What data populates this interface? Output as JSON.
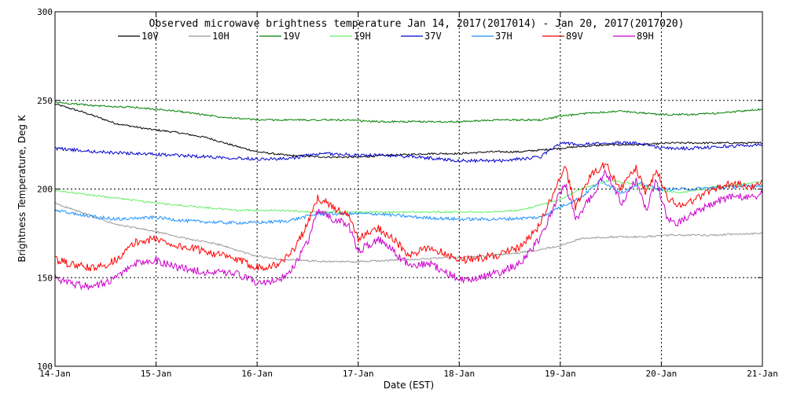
{
  "chart_data": {
    "type": "line",
    "title": "Observed microwave brightness temperature Jan 14, 2017(2017014) - Jan 20, 2017(2017020)",
    "xlabel": "Date (EST)",
    "ylabel": "Brightness Temperature, Deg K",
    "xlim": [
      0,
      7
    ],
    "ylim": [
      100,
      300
    ],
    "x_tick_values": [
      0,
      1,
      2,
      3,
      4,
      5,
      6,
      7
    ],
    "x_tick_labels": [
      "14-Jan",
      "15-Jan",
      "16-Jan",
      "17-Jan",
      "18-Jan",
      "19-Jan",
      "20-Jan",
      "21-Jan"
    ],
    "y_ticks": [
      100,
      150,
      200,
      250,
      300
    ],
    "grid": "dotted",
    "legend_position": "top",
    "series": [
      {
        "name": "10V",
        "color": "#000000",
        "points": [
          [
            0,
            248
          ],
          [
            0.3,
            243
          ],
          [
            0.6,
            237
          ],
          [
            0.9,
            234
          ],
          [
            1.2,
            232
          ],
          [
            1.5,
            229
          ],
          [
            1.8,
            224
          ],
          [
            2.0,
            221
          ],
          [
            2.3,
            219
          ],
          [
            2.7,
            218
          ],
          [
            3.0,
            218
          ],
          [
            3.3,
            219
          ],
          [
            3.7,
            220
          ],
          [
            4.0,
            220
          ],
          [
            4.3,
            221
          ],
          [
            4.6,
            221
          ],
          [
            5.0,
            223
          ],
          [
            5.2,
            224
          ],
          [
            5.5,
            225
          ],
          [
            5.8,
            225
          ],
          [
            6.1,
            226
          ],
          [
            6.5,
            226
          ],
          [
            7.0,
            226
          ]
        ]
      },
      {
        "name": "10H",
        "color": "#999999",
        "points": [
          [
            0,
            192
          ],
          [
            0.3,
            186
          ],
          [
            0.6,
            180
          ],
          [
            1.0,
            176
          ],
          [
            1.3,
            172
          ],
          [
            1.6,
            169
          ],
          [
            2.0,
            162
          ],
          [
            2.3,
            160
          ],
          [
            2.7,
            159
          ],
          [
            3.0,
            159
          ],
          [
            3.4,
            160
          ],
          [
            3.8,
            161
          ],
          [
            4.2,
            162
          ],
          [
            4.6,
            164
          ],
          [
            5.0,
            168
          ],
          [
            5.2,
            172
          ],
          [
            5.5,
            173
          ],
          [
            5.8,
            173
          ],
          [
            6.1,
            174
          ],
          [
            6.5,
            174
          ],
          [
            7.0,
            175
          ]
        ]
      },
      {
        "name": "19V",
        "color": "#008000",
        "points": [
          [
            0,
            249
          ],
          [
            0.4,
            247
          ],
          [
            0.8,
            246
          ],
          [
            1.2,
            244
          ],
          [
            1.6,
            241
          ],
          [
            2.0,
            239
          ],
          [
            2.4,
            239
          ],
          [
            2.8,
            239
          ],
          [
            3.2,
            238
          ],
          [
            3.6,
            238
          ],
          [
            4.0,
            238
          ],
          [
            4.4,
            239
          ],
          [
            4.8,
            239
          ],
          [
            5.0,
            241
          ],
          [
            5.3,
            243
          ],
          [
            5.6,
            244
          ],
          [
            6.0,
            242
          ],
          [
            6.3,
            242
          ],
          [
            6.6,
            243
          ],
          [
            7.0,
            245
          ]
        ]
      },
      {
        "name": "19H",
        "color": "#66ee66",
        "points": [
          [
            0,
            199
          ],
          [
            0.3,
            197
          ],
          [
            0.6,
            195
          ],
          [
            1.0,
            192
          ],
          [
            1.4,
            190
          ],
          [
            1.8,
            188
          ],
          [
            2.2,
            188
          ],
          [
            2.6,
            187
          ],
          [
            3.0,
            187
          ],
          [
            3.4,
            187
          ],
          [
            3.8,
            187
          ],
          [
            4.2,
            187
          ],
          [
            4.6,
            188
          ],
          [
            5.0,
            194
          ],
          [
            5.2,
            200
          ],
          [
            5.5,
            205
          ],
          [
            5.8,
            202
          ],
          [
            6.0,
            199
          ],
          [
            6.2,
            198
          ],
          [
            6.5,
            201
          ],
          [
            7.0,
            204
          ]
        ]
      },
      {
        "name": "37V",
        "color": "#0000cc",
        "points": [
          [
            0,
            223
          ],
          [
            0.4,
            221
          ],
          [
            0.8,
            220
          ],
          [
            1.2,
            219
          ],
          [
            1.6,
            218
          ],
          [
            2.0,
            217
          ],
          [
            2.3,
            217
          ],
          [
            2.5,
            219
          ],
          [
            2.7,
            220
          ],
          [
            3.0,
            219
          ],
          [
            3.3,
            219
          ],
          [
            3.6,
            218
          ],
          [
            4.0,
            216
          ],
          [
            4.4,
            216
          ],
          [
            4.8,
            218
          ],
          [
            5.0,
            226
          ],
          [
            5.2,
            225
          ],
          [
            5.5,
            226
          ],
          [
            5.8,
            226
          ],
          [
            6.0,
            223
          ],
          [
            6.3,
            223
          ],
          [
            6.6,
            224
          ],
          [
            7.0,
            225
          ]
        ]
      },
      {
        "name": "37H",
        "color": "#1e90ff",
        "points": [
          [
            0,
            188
          ],
          [
            0.3,
            185
          ],
          [
            0.6,
            183
          ],
          [
            1.0,
            184
          ],
          [
            1.3,
            182
          ],
          [
            1.7,
            181
          ],
          [
            2.0,
            181
          ],
          [
            2.3,
            182
          ],
          [
            2.6,
            186
          ],
          [
            2.9,
            186
          ],
          [
            3.2,
            186
          ],
          [
            3.6,
            184
          ],
          [
            4.0,
            183
          ],
          [
            4.4,
            183
          ],
          [
            4.8,
            184
          ],
          [
            5.0,
            190
          ],
          [
            5.2,
            195
          ],
          [
            5.4,
            205
          ],
          [
            5.6,
            198
          ],
          [
            5.8,
            203
          ],
          [
            6.0,
            200
          ],
          [
            6.3,
            200
          ],
          [
            6.6,
            201
          ],
          [
            7.0,
            202
          ]
        ]
      },
      {
        "name": "89V",
        "color": "#ff0000",
        "points": [
          [
            0,
            160
          ],
          [
            0.2,
            157
          ],
          [
            0.4,
            155
          ],
          [
            0.6,
            160
          ],
          [
            0.8,
            170
          ],
          [
            1.0,
            172
          ],
          [
            1.2,
            168
          ],
          [
            1.5,
            165
          ],
          [
            1.8,
            160
          ],
          [
            2.0,
            156
          ],
          [
            2.2,
            157
          ],
          [
            2.35,
            165
          ],
          [
            2.5,
            180
          ],
          [
            2.6,
            195
          ],
          [
            2.75,
            190
          ],
          [
            2.9,
            185
          ],
          [
            3.0,
            172
          ],
          [
            3.2,
            178
          ],
          [
            3.35,
            172
          ],
          [
            3.5,
            162
          ],
          [
            3.7,
            167
          ],
          [
            3.9,
            163
          ],
          [
            4.0,
            160
          ],
          [
            4.2,
            161
          ],
          [
            4.4,
            163
          ],
          [
            4.6,
            167
          ],
          [
            4.8,
            180
          ],
          [
            4.95,
            200
          ],
          [
            5.05,
            212
          ],
          [
            5.15,
            190
          ],
          [
            5.3,
            208
          ],
          [
            5.45,
            214
          ],
          [
            5.6,
            200
          ],
          [
            5.75,
            212
          ],
          [
            5.85,
            197
          ],
          [
            5.95,
            211
          ],
          [
            6.05,
            196
          ],
          [
            6.15,
            191
          ],
          [
            6.3,
            193
          ],
          [
            6.5,
            200
          ],
          [
            6.7,
            203
          ],
          [
            6.9,
            201
          ],
          [
            7.0,
            203
          ]
        ]
      },
      {
        "name": "89H",
        "color": "#cc00cc",
        "points": [
          [
            0,
            150
          ],
          [
            0.2,
            146
          ],
          [
            0.4,
            145
          ],
          [
            0.6,
            150
          ],
          [
            0.8,
            158
          ],
          [
            1.0,
            160
          ],
          [
            1.2,
            156
          ],
          [
            1.5,
            153
          ],
          [
            1.8,
            152
          ],
          [
            2.0,
            147
          ],
          [
            2.2,
            148
          ],
          [
            2.35,
            155
          ],
          [
            2.5,
            170
          ],
          [
            2.6,
            188
          ],
          [
            2.75,
            183
          ],
          [
            2.9,
            180
          ],
          [
            3.0,
            165
          ],
          [
            3.2,
            172
          ],
          [
            3.35,
            165
          ],
          [
            3.5,
            157
          ],
          [
            3.7,
            158
          ],
          [
            3.9,
            152
          ],
          [
            4.0,
            149
          ],
          [
            4.2,
            150
          ],
          [
            4.4,
            153
          ],
          [
            4.6,
            158
          ],
          [
            4.8,
            172
          ],
          [
            4.95,
            192
          ],
          [
            5.05,
            203
          ],
          [
            5.15,
            183
          ],
          [
            5.3,
            195
          ],
          [
            5.45,
            210
          ],
          [
            5.6,
            192
          ],
          [
            5.75,
            205
          ],
          [
            5.85,
            188
          ],
          [
            5.95,
            205
          ],
          [
            6.05,
            185
          ],
          [
            6.15,
            180
          ],
          [
            6.3,
            185
          ],
          [
            6.5,
            192
          ],
          [
            6.7,
            196
          ],
          [
            6.9,
            195
          ],
          [
            7.0,
            198
          ]
        ]
      }
    ]
  }
}
